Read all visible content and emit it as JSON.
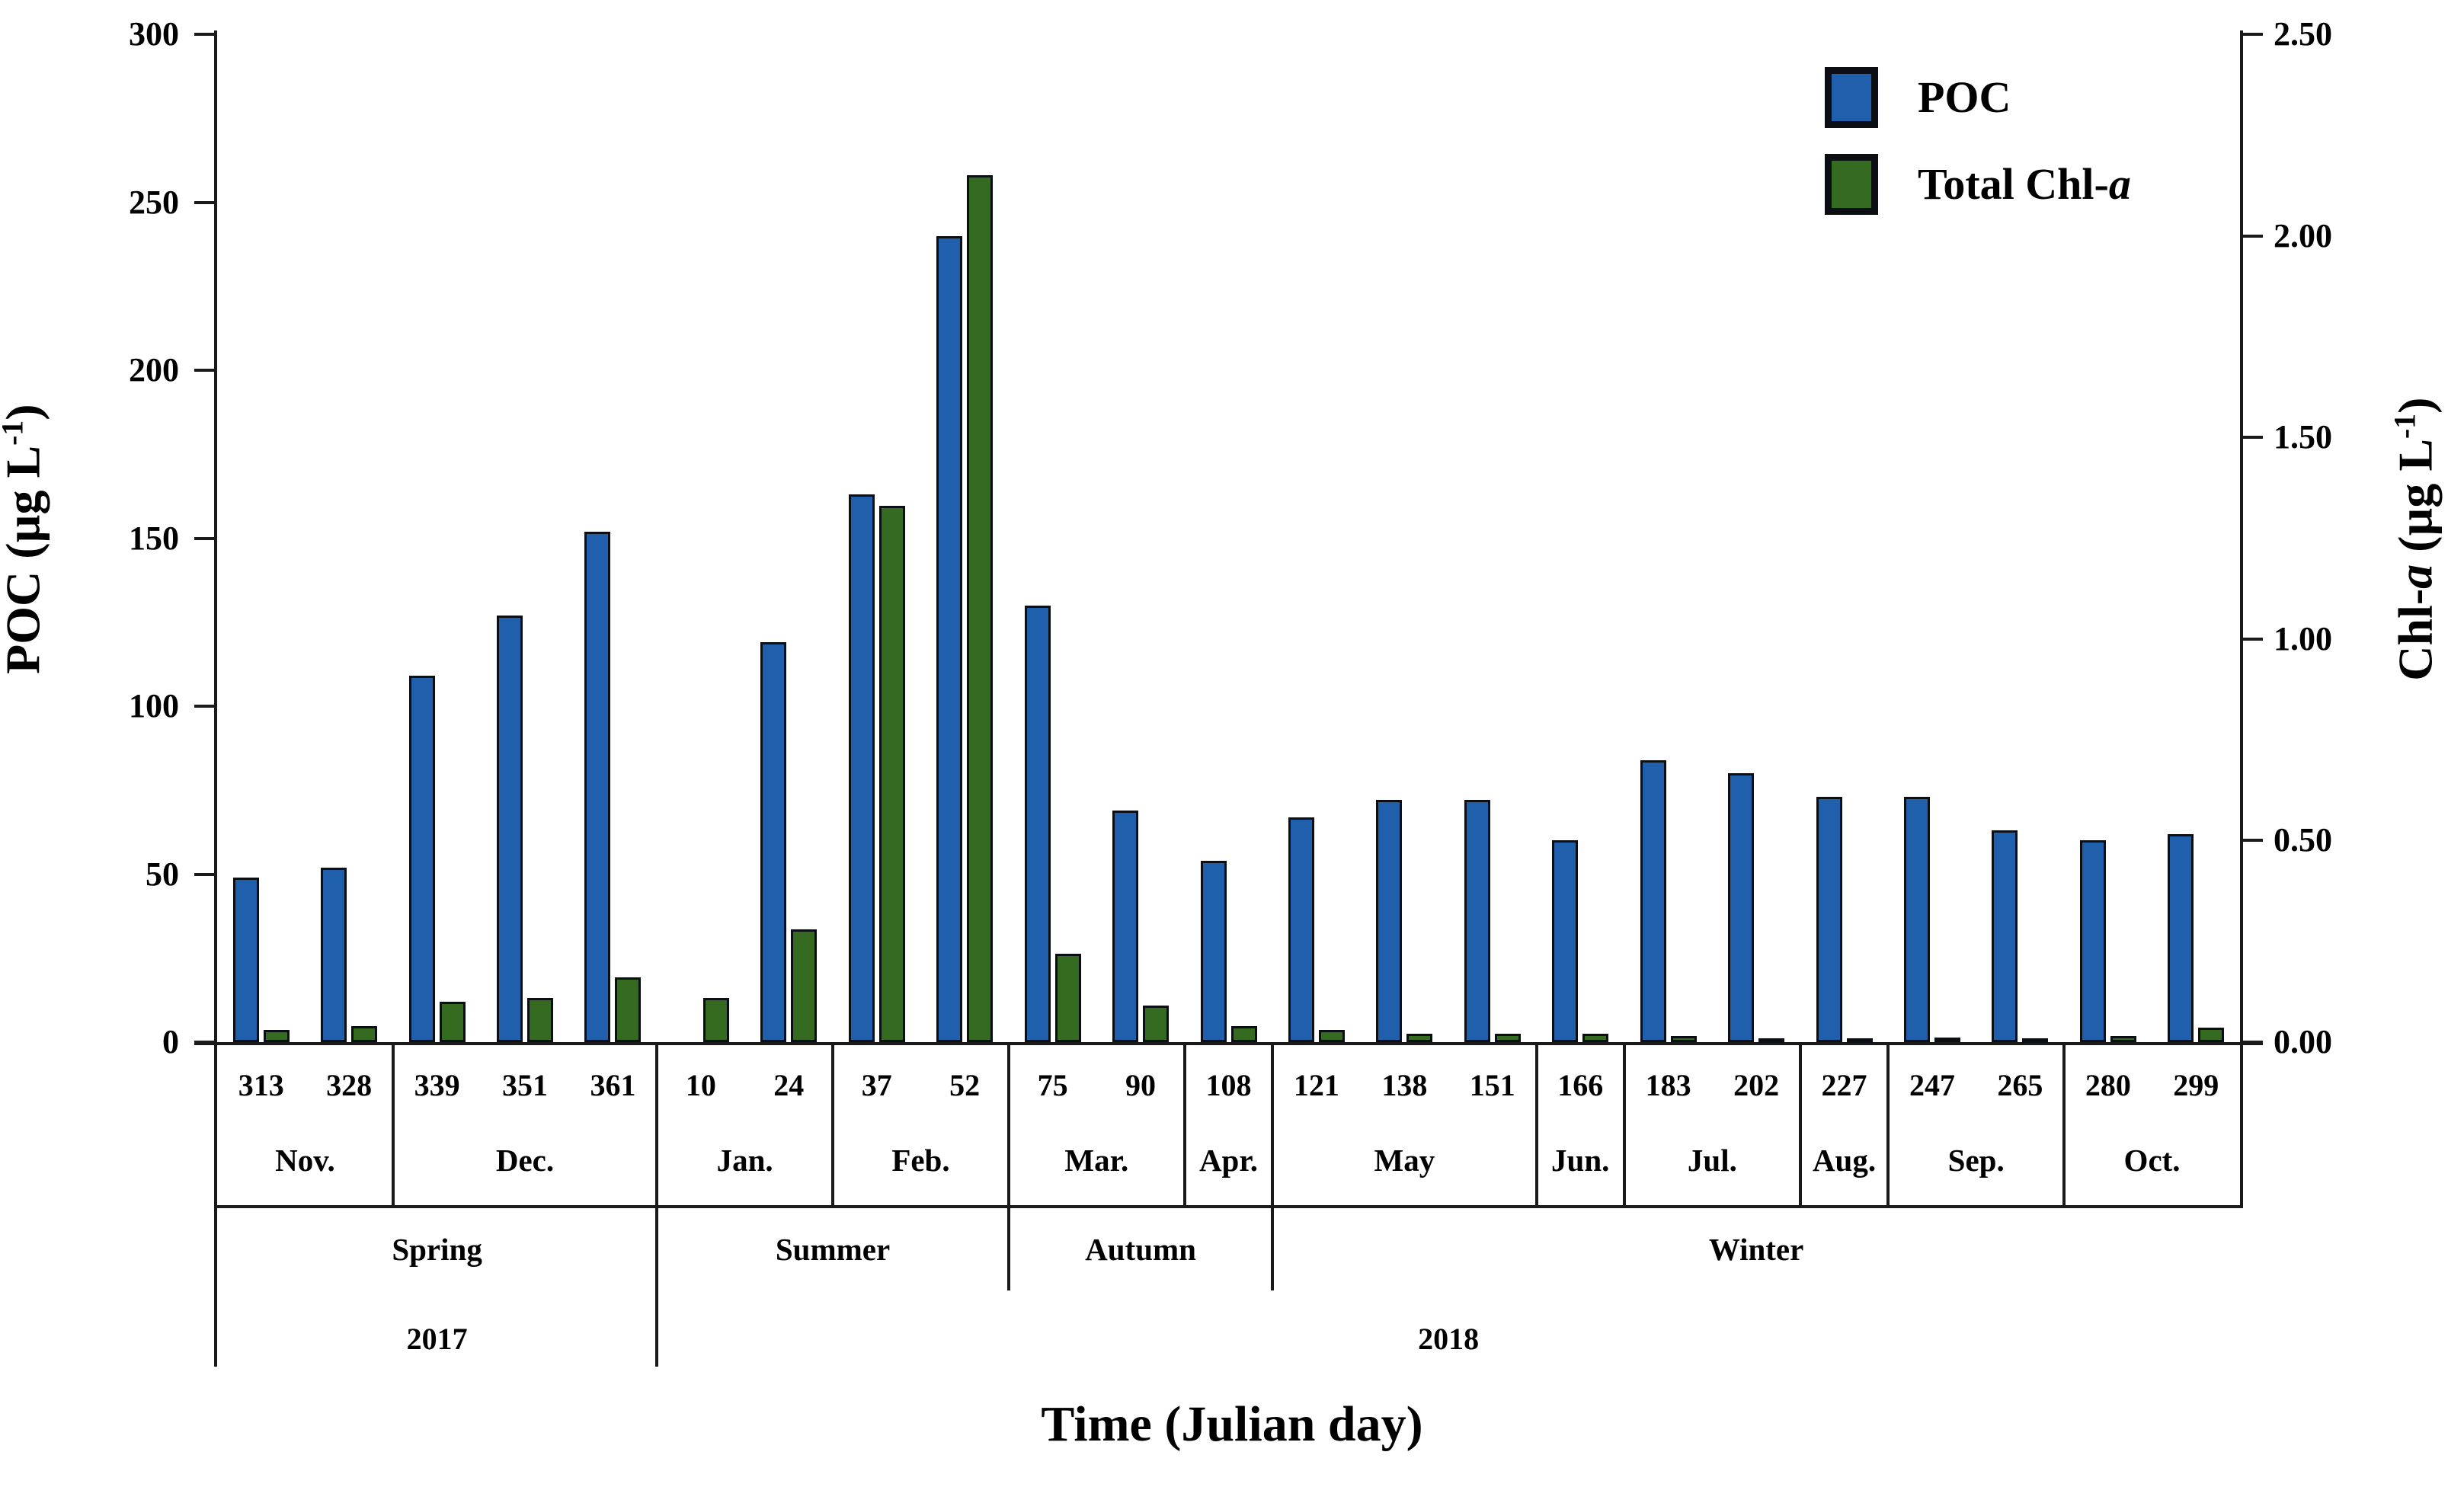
{
  "chart_data": {
    "type": "bar",
    "title": "",
    "xlabel": "Time (Julian day)",
    "left_axis": {
      "label_pre": "POC (µg L",
      "label_sup": "-1",
      "label_post": ")",
      "ticks": [
        0,
        50,
        100,
        150,
        200,
        250,
        300
      ],
      "min": 0,
      "max": 300
    },
    "right_axis": {
      "label_pre": "Chl-",
      "label_italic": "a",
      "label_mid": " (µg L",
      "label_sup": "-1",
      "label_post": ")",
      "ticks": [
        "0.00",
        "0.50",
        "1.00",
        "1.50",
        "2.00",
        "2.50"
      ],
      "min": 0,
      "max": 2.5
    },
    "legend": [
      {
        "name": "poc",
        "label": "POC",
        "color": "#1F5FAC"
      },
      {
        "name": "total-chl-a",
        "label_pre": "Total Chl-",
        "label_italic": "a",
        "color": "#356B21"
      }
    ],
    "colors": {
      "poc": "#1F5FAC",
      "chl": "#356B21",
      "bar_border": "#0b0f14",
      "axis": "#1a1a1a"
    },
    "grid": false,
    "legend_position": "top-right",
    "samples": [
      {
        "day": "313",
        "poc": 49,
        "chl": 0.03
      },
      {
        "day": "328",
        "poc": 52,
        "chl": 0.04
      },
      {
        "day": "339",
        "poc": 109,
        "chl": 0.1
      },
      {
        "day": "351",
        "poc": 127,
        "chl": 0.11
      },
      {
        "day": "361",
        "poc": 152,
        "chl": 0.16
      },
      {
        "day": "10",
        "poc": null,
        "chl": 0.11
      },
      {
        "day": "24",
        "poc": 119,
        "chl": 0.28
      },
      {
        "day": "37",
        "poc": 163,
        "chl": 1.33
      },
      {
        "day": "52",
        "poc": 240,
        "chl": 2.15
      },
      {
        "day": "75",
        "poc": 130,
        "chl": 0.22
      },
      {
        "day": "90",
        "poc": 69,
        "chl": 0.09
      },
      {
        "day": "108",
        "poc": 54,
        "chl": 0.04
      },
      {
        "day": "121",
        "poc": 67,
        "chl": 0.03
      },
      {
        "day": "138",
        "poc": 72,
        "chl": 0.02
      },
      {
        "day": "151",
        "poc": 72,
        "chl": 0.02
      },
      {
        "day": "166",
        "poc": 60,
        "chl": 0.02
      },
      {
        "day": "183",
        "poc": 84,
        "chl": 0.015
      },
      {
        "day": "202",
        "poc": 80,
        "chl": 0.01
      },
      {
        "day": "227",
        "poc": 73,
        "chl": 0.01
      },
      {
        "day": "247",
        "poc": 73,
        "chl": 0.012
      },
      {
        "day": "265",
        "poc": 63,
        "chl": 0.01
      },
      {
        "day": "280",
        "poc": 60,
        "chl": 0.015
      },
      {
        "day": "299",
        "poc": 62,
        "chl": 0.035
      }
    ],
    "months": [
      {
        "label": "Nov.",
        "count": 2
      },
      {
        "label": "Dec.",
        "count": 3
      },
      {
        "label": "Jan.",
        "count": 2
      },
      {
        "label": "Feb.",
        "count": 2
      },
      {
        "label": "Mar.",
        "count": 2
      },
      {
        "label": "Apr.",
        "count": 1
      },
      {
        "label": "May",
        "count": 3
      },
      {
        "label": "Jun.",
        "count": 1
      },
      {
        "label": "Jul.",
        "count": 2
      },
      {
        "label": "Aug.",
        "count": 1
      },
      {
        "label": "Sep.",
        "count": 2
      },
      {
        "label": "Oct.",
        "count": 2
      }
    ],
    "seasons": [
      {
        "label": "Spring",
        "months": 2
      },
      {
        "label": "Summer",
        "months": 2
      },
      {
        "label": "Autumn",
        "months": 2
      },
      {
        "label": "Winter",
        "months": 6
      }
    ],
    "years": [
      {
        "label": "2017",
        "months": 2
      },
      {
        "label": "2018",
        "months": 10
      }
    ]
  }
}
